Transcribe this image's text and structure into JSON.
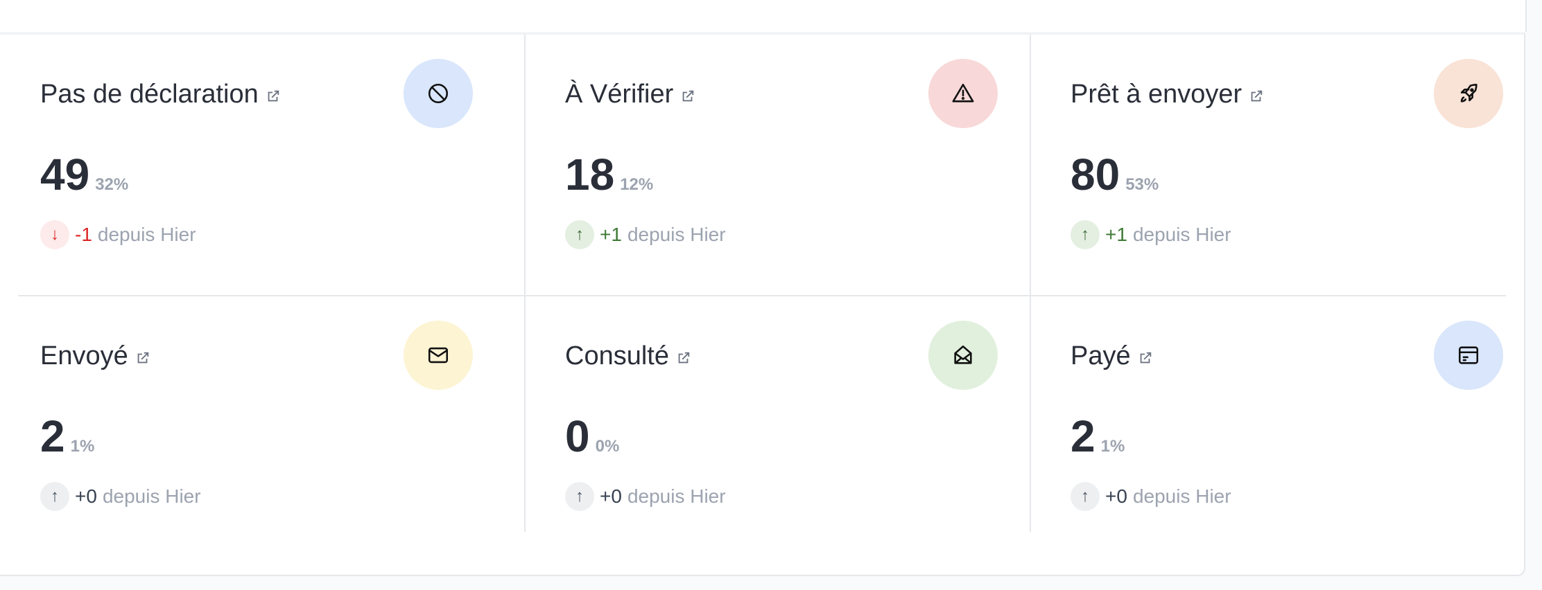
{
  "since_label": "depuis Hier",
  "cards": [
    {
      "title": "Pas de déclaration",
      "value": "49",
      "percent": "32%",
      "delta": "-1",
      "trend": "down",
      "icon": "ban-icon",
      "icon_bg": "#d9e6fb"
    },
    {
      "title": "À Vérifier",
      "value": "18",
      "percent": "12%",
      "delta": "+1",
      "trend": "up",
      "icon": "warning-icon",
      "icon_bg": "#f8d8d8"
    },
    {
      "title": "Prêt à envoyer",
      "value": "80",
      "percent": "53%",
      "delta": "+1",
      "trend": "up",
      "icon": "rocket-icon",
      "icon_bg": "#f9e2d6"
    },
    {
      "title": "Envoyé",
      "value": "2",
      "percent": "1%",
      "delta": "+0",
      "trend": "flat",
      "icon": "mail-icon",
      "icon_bg": "#fdf4d4"
    },
    {
      "title": "Consulté",
      "value": "0",
      "percent": "0%",
      "delta": "+0",
      "trend": "flat",
      "icon": "mail-open-icon",
      "icon_bg": "#e1f0dd"
    },
    {
      "title": "Payé",
      "value": "2",
      "percent": "1%",
      "delta": "+0",
      "trend": "flat",
      "icon": "credit-card-icon",
      "icon_bg": "#d9e6fb"
    }
  ]
}
